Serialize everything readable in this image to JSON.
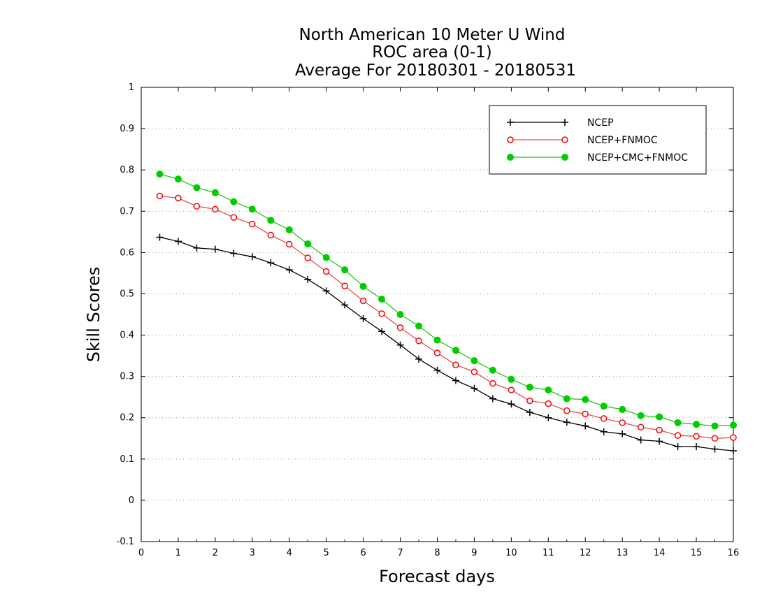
{
  "chart_data": {
    "type": "line",
    "title_lines": [
      "North American 10 Meter U Wind",
      "ROC area (0-1)",
      "Average For 20180301 - 20180531"
    ],
    "xlabel": "Forecast days",
    "ylabel": "Skill Scores",
    "xlim": [
      0,
      16
    ],
    "ylim": [
      -0.1,
      1
    ],
    "xticks": [
      "0",
      "1",
      "2",
      "3",
      "4",
      "5",
      "6",
      "7",
      "8",
      "9",
      "10",
      "11",
      "12",
      "13",
      "14",
      "15",
      "16"
    ],
    "yticks": [
      "-0.1",
      "0",
      "0.1",
      "0.2",
      "0.3",
      "0.4",
      "0.5",
      "0.6",
      "0.7",
      "0.8",
      "0.9",
      "1"
    ],
    "grid": "horizontal dotted",
    "legend_position": "top-right",
    "x": [
      0.5,
      1,
      1.5,
      2,
      2.5,
      3,
      3.5,
      4,
      4.5,
      5,
      5.5,
      6,
      6.5,
      7,
      7.5,
      8,
      8.5,
      9,
      9.5,
      10,
      10.5,
      11,
      11.5,
      12,
      12.5,
      13,
      13.5,
      14,
      14.5,
      15,
      15.5,
      16
    ],
    "series": [
      {
        "name": "NCEP",
        "color": "#000000",
        "marker": "plus",
        "values": [
          0.637,
          0.627,
          0.611,
          0.608,
          0.598,
          0.59,
          0.575,
          0.558,
          0.535,
          0.507,
          0.473,
          0.44,
          0.409,
          0.376,
          0.342,
          0.315,
          0.29,
          0.271,
          0.246,
          0.233,
          0.213,
          0.2,
          0.189,
          0.18,
          0.166,
          0.161,
          0.146,
          0.143,
          0.13,
          0.13,
          0.124,
          0.12
        ]
      },
      {
        "name": "NCEP+FNMOC",
        "color": "#ff0000",
        "line_color": "#e45050",
        "marker": "open-circle",
        "values": [
          0.737,
          0.732,
          0.712,
          0.705,
          0.685,
          0.669,
          0.642,
          0.62,
          0.587,
          0.554,
          0.519,
          0.483,
          0.452,
          0.418,
          0.386,
          0.357,
          0.328,
          0.311,
          0.283,
          0.267,
          0.241,
          0.234,
          0.217,
          0.209,
          0.198,
          0.188,
          0.177,
          0.17,
          0.157,
          0.155,
          0.15,
          0.152
        ]
      },
      {
        "name": "NCEP+CMC+FNMOC",
        "color": "#00cc00",
        "line_color": "#1ec81e",
        "marker": "filled-circle",
        "values": [
          0.79,
          0.778,
          0.757,
          0.745,
          0.723,
          0.705,
          0.678,
          0.655,
          0.621,
          0.588,
          0.558,
          0.518,
          0.487,
          0.45,
          0.422,
          0.388,
          0.363,
          0.338,
          0.315,
          0.293,
          0.274,
          0.267,
          0.246,
          0.244,
          0.228,
          0.22,
          0.205,
          0.202,
          0.188,
          0.184,
          0.18,
          0.182
        ]
      }
    ]
  }
}
